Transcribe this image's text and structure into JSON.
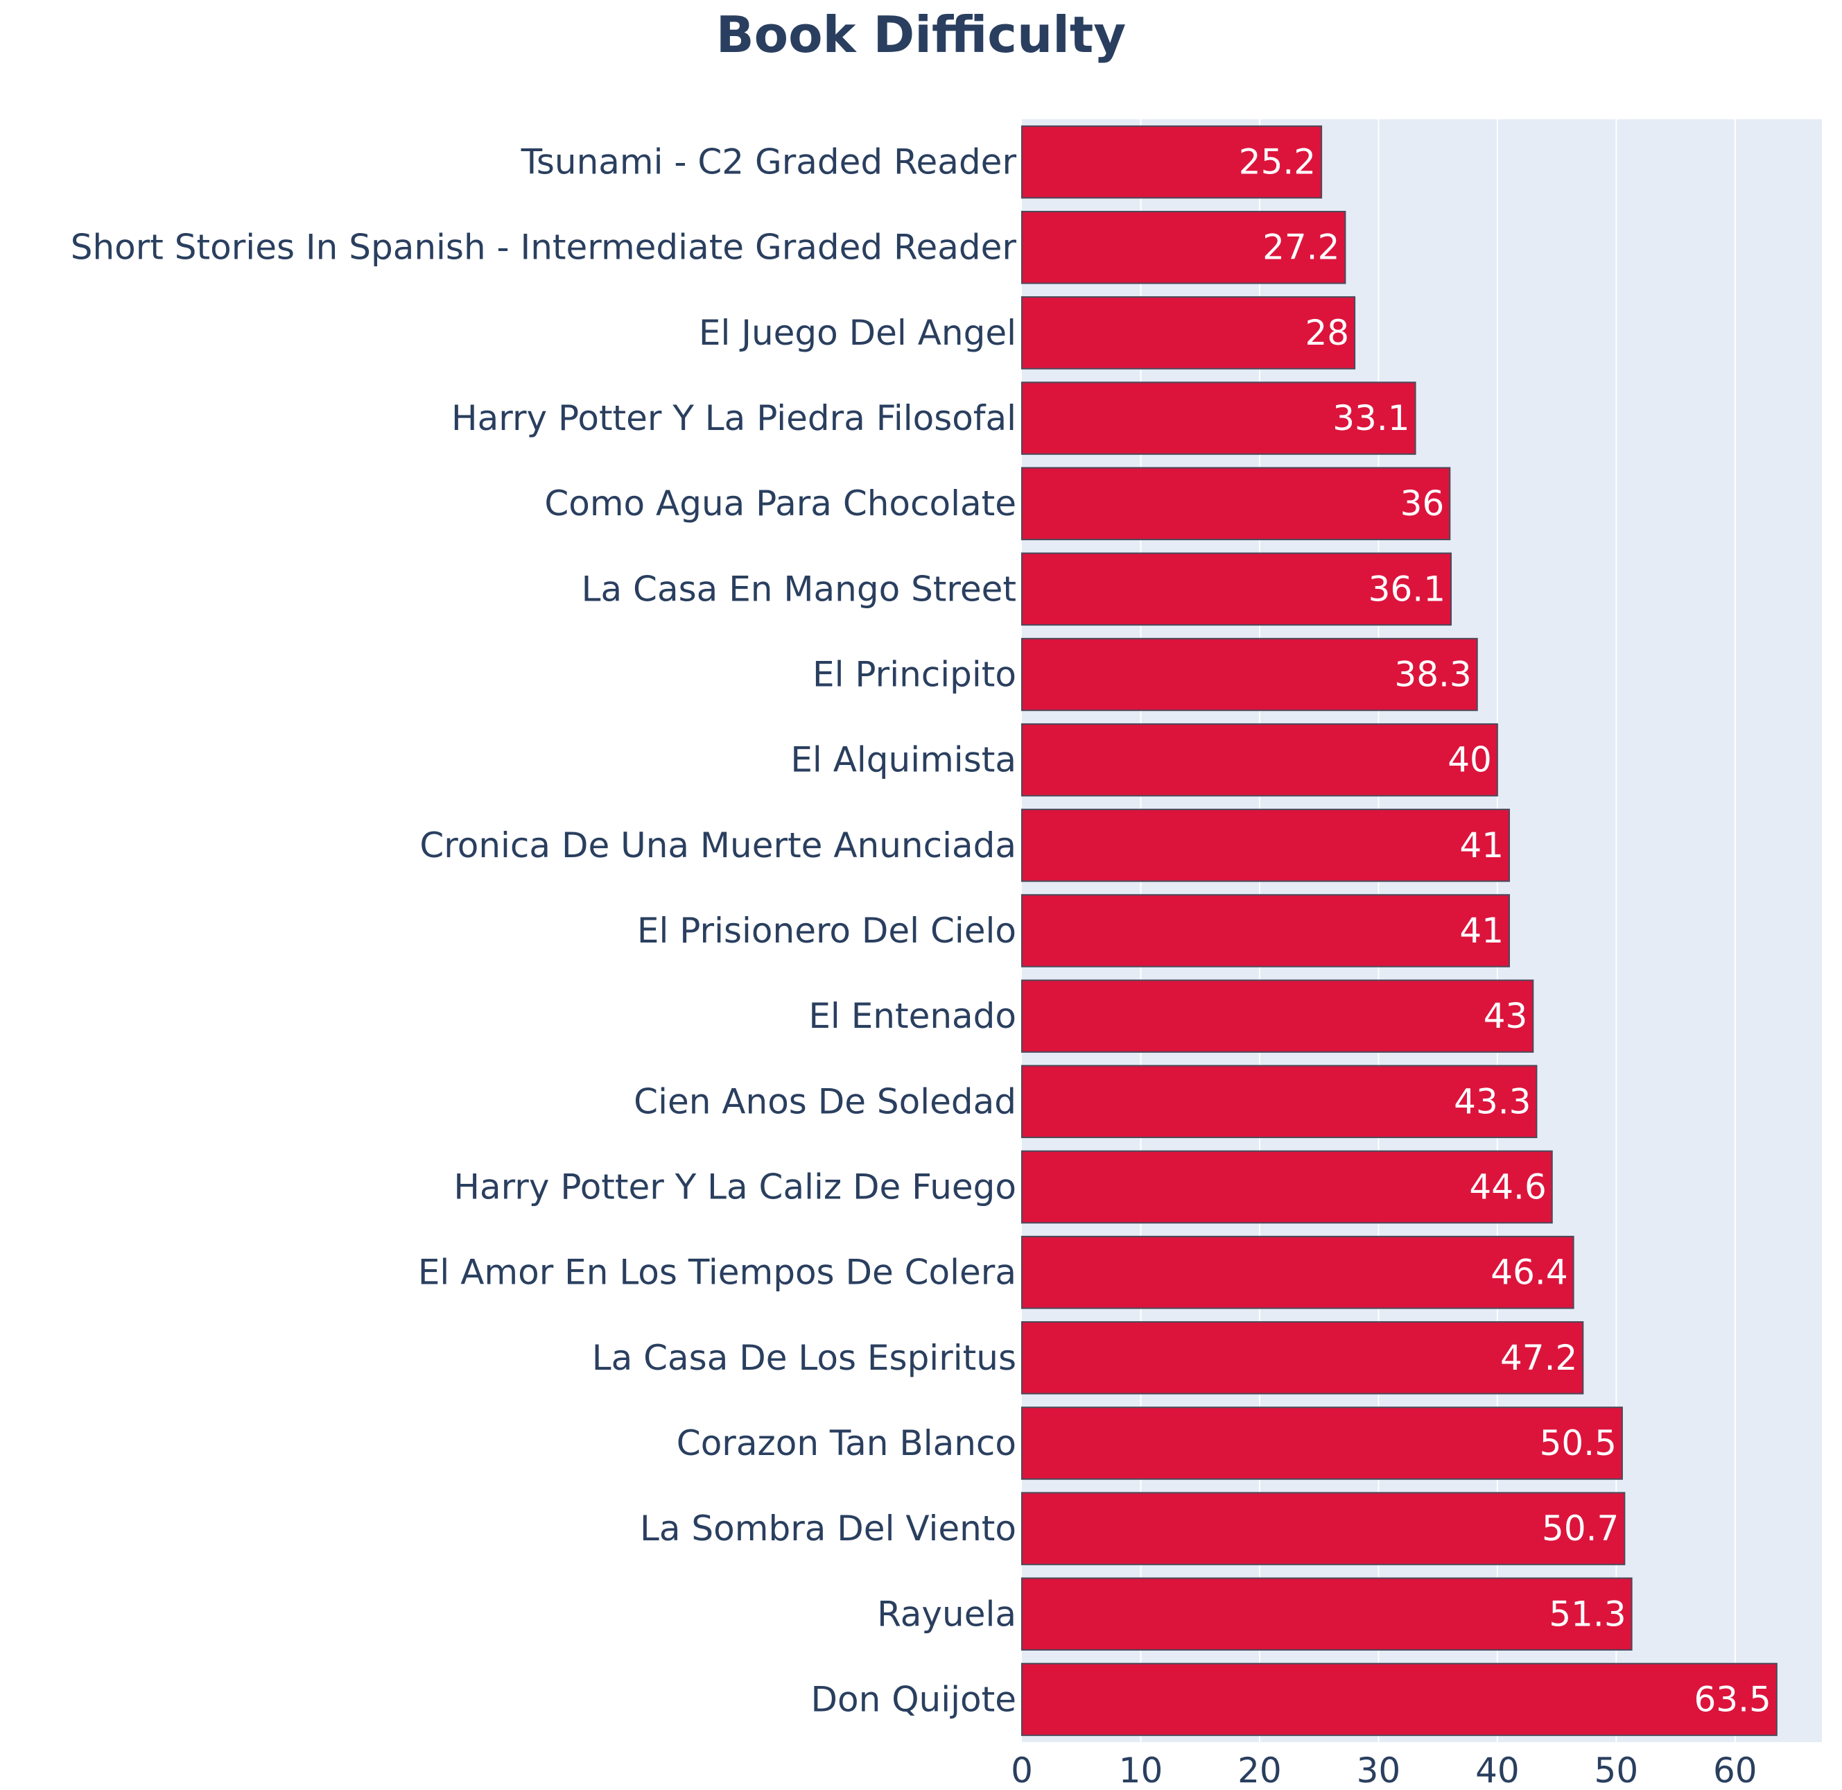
{
  "chart_data": {
    "type": "bar",
    "orientation": "horizontal",
    "title": "Book Difficulty",
    "xlabel": "",
    "ylabel": "",
    "xlim": [
      0,
      67.3
    ],
    "xticks": [
      0,
      10,
      20,
      30,
      40,
      50,
      60
    ],
    "grid": true,
    "categories": [
      "Tsunami - C2 Graded Reader",
      "Short Stories In Spanish - Intermediate Graded Reader",
      "El Juego Del Angel",
      "Harry Potter Y La Piedra Filosofal",
      "Como Agua Para Chocolate",
      "La Casa En Mango Street",
      "El Principito",
      "El Alquimista",
      "Cronica De Una Muerte Anunciada",
      "El Prisionero Del Cielo",
      "El Entenado",
      "Cien Anos De Soledad",
      "Harry Potter Y La Caliz De Fuego",
      "El Amor En Los Tiempos De Colera",
      "La Casa De Los Espiritus",
      "Corazon Tan Blanco",
      "La Sombra Del Viento",
      "Rayuela",
      "Don Quijote"
    ],
    "values": [
      25.2,
      27.2,
      28,
      33.1,
      36,
      36.1,
      38.3,
      40,
      41,
      41,
      43,
      43.3,
      44.6,
      46.4,
      47.2,
      50.5,
      50.7,
      51.3,
      63.5
    ],
    "colors": {
      "bar": "#dc143c",
      "bar_outline": "#4a4a5a",
      "plot_bg": "#e5ecf6",
      "grid": "#ffffff",
      "text": "#2a3f5f",
      "bar_label": "#ffffff"
    }
  }
}
